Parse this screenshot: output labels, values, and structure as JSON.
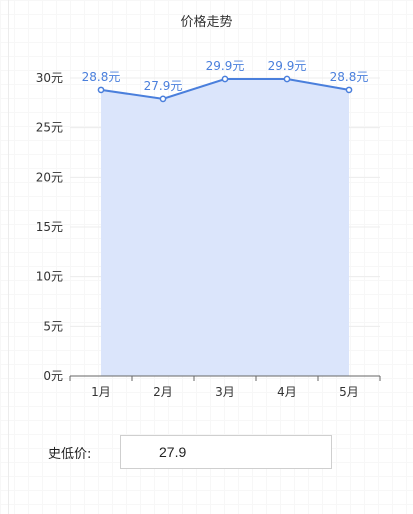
{
  "chart_data": {
    "type": "area",
    "title": "价格走势",
    "categories": [
      "1月",
      "2月",
      "3月",
      "4月",
      "5月"
    ],
    "series": [
      {
        "values": [
          28.8,
          27.9,
          29.9,
          29.9,
          28.8
        ],
        "labels": [
          "28.8元",
          "27.9元",
          "29.9元",
          "29.9元",
          "28.8元"
        ]
      }
    ],
    "y_ticks": [
      0,
      5,
      10,
      15,
      20,
      25,
      30
    ],
    "y_tick_labels": [
      "0元",
      "5元",
      "10元",
      "15元",
      "20元",
      "25元",
      "30元"
    ],
    "ylim": [
      0,
      30
    ],
    "grid": true,
    "colors": {
      "line": "#4a7fdc",
      "area": "#dbe5fb",
      "label": "#4a7fdc"
    }
  },
  "lowest": {
    "label": "史低价:",
    "value": "27.9"
  }
}
